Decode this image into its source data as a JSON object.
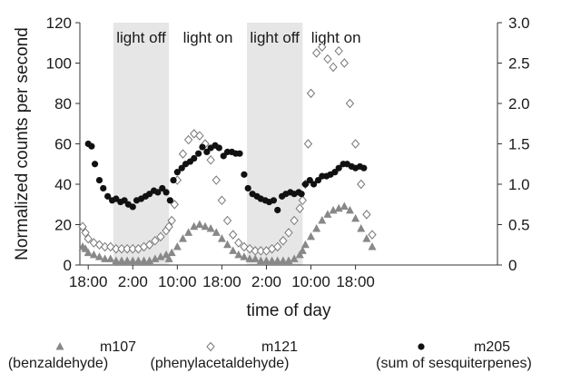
{
  "chart_data": {
    "type": "scatter",
    "title": "",
    "xlabel": "time of day",
    "ylabel": "Normalized counts per second",
    "y2label": "",
    "ylim": [
      0,
      120
    ],
    "y2lim": [
      0,
      3.0
    ],
    "xlim": [
      16.5,
      91.5
    ],
    "x_unit": "hours since start of day 1 (18:00 = 18)",
    "x_ticks": [
      {
        "x": 18,
        "label": "18:00"
      },
      {
        "x": 26,
        "label": "2:00"
      },
      {
        "x": 34,
        "label": "10:00"
      },
      {
        "x": 42,
        "label": "18:00"
      },
      {
        "x": 50,
        "label": "2:00"
      },
      {
        "x": 58,
        "label": "10:00"
      },
      {
        "x": 66,
        "label": "18:00"
      }
    ],
    "y_ticks": [
      0,
      20,
      40,
      60,
      80,
      100,
      120
    ],
    "y2_ticks": [
      "0",
      "0.5",
      "1.0",
      "1.5",
      "2.0",
      "2.5",
      "3.0"
    ],
    "phases": [
      {
        "start": 22.5,
        "end": 32.5,
        "label": "light off",
        "shaded": true
      },
      {
        "start": 32.5,
        "end": 46.5,
        "label": "light on",
        "shaded": false
      },
      {
        "start": 46.5,
        "end": 56.5,
        "label": "light off",
        "shaded": true
      },
      {
        "start": 56.5,
        "end": 68.5,
        "label": "light on",
        "shaded": false
      }
    ],
    "legend_position": "bottom",
    "series": [
      {
        "name": "m107",
        "sublabel": "(benzaldehyde)",
        "marker": "triangle",
        "axis": "left",
        "points": [
          [
            17.0,
            9
          ],
          [
            17.5,
            8
          ],
          [
            18,
            6
          ],
          [
            19,
            5
          ],
          [
            20,
            4
          ],
          [
            21,
            3
          ],
          [
            22,
            3
          ],
          [
            23,
            2
          ],
          [
            24,
            2
          ],
          [
            25,
            2
          ],
          [
            26,
            2
          ],
          [
            27,
            2
          ],
          [
            28,
            2
          ],
          [
            29,
            2
          ],
          [
            30,
            3
          ],
          [
            31,
            4
          ],
          [
            32,
            5
          ],
          [
            32.5,
            3
          ],
          [
            33,
            6
          ],
          [
            34,
            9
          ],
          [
            35,
            13
          ],
          [
            36,
            16
          ],
          [
            37,
            19
          ],
          [
            38,
            20
          ],
          [
            39,
            19
          ],
          [
            40,
            18
          ],
          [
            41,
            16
          ],
          [
            42,
            13
          ],
          [
            43,
            10
          ],
          [
            44,
            7
          ],
          [
            45,
            5
          ],
          [
            46,
            4
          ],
          [
            47,
            3
          ],
          [
            48,
            3
          ],
          [
            49,
            2
          ],
          [
            50,
            2
          ],
          [
            51,
            2
          ],
          [
            52,
            2
          ],
          [
            53,
            2
          ],
          [
            54,
            2
          ],
          [
            55,
            3
          ],
          [
            56,
            5
          ],
          [
            56.5,
            7
          ],
          [
            57,
            10
          ],
          [
            58,
            14
          ],
          [
            59,
            18
          ],
          [
            60,
            22
          ],
          [
            61,
            25
          ],
          [
            62,
            27
          ],
          [
            63,
            28
          ],
          [
            64,
            29
          ],
          [
            65,
            27
          ],
          [
            66,
            23
          ],
          [
            67,
            18
          ],
          [
            68,
            13
          ],
          [
            69,
            9
          ]
        ]
      },
      {
        "name": "m121",
        "sublabel": "(phenylacetaldehyde)",
        "marker": "diamond-open",
        "axis": "left",
        "points": [
          [
            17.0,
            19
          ],
          [
            17.5,
            16
          ],
          [
            18,
            13
          ],
          [
            19,
            11
          ],
          [
            20,
            10
          ],
          [
            21,
            9
          ],
          [
            22,
            9
          ],
          [
            23,
            8
          ],
          [
            24,
            8
          ],
          [
            25,
            8
          ],
          [
            26,
            8
          ],
          [
            27,
            8
          ],
          [
            28,
            9
          ],
          [
            29,
            10
          ],
          [
            30,
            12
          ],
          [
            31,
            14
          ],
          [
            32,
            17
          ],
          [
            32.5,
            19
          ],
          [
            33,
            22
          ],
          [
            33.5,
            30
          ],
          [
            34,
            42
          ],
          [
            35,
            55
          ],
          [
            36,
            62
          ],
          [
            37,
            65
          ],
          [
            38,
            64
          ],
          [
            39,
            60
          ],
          [
            40,
            52
          ],
          [
            41,
            42
          ],
          [
            42,
            32
          ],
          [
            43,
            22
          ],
          [
            44,
            15
          ],
          [
            45,
            11
          ],
          [
            46,
            9
          ],
          [
            47,
            8
          ],
          [
            48,
            7
          ],
          [
            49,
            7
          ],
          [
            50,
            7
          ],
          [
            51,
            8
          ],
          [
            52,
            9
          ],
          [
            53,
            12
          ],
          [
            54,
            16
          ],
          [
            55,
            22
          ],
          [
            56,
            28
          ],
          [
            56.5,
            32
          ],
          [
            57,
            40
          ],
          [
            57.5,
            60
          ],
          [
            58,
            85
          ],
          [
            59,
            105
          ],
          [
            60,
            108
          ],
          [
            61,
            102
          ],
          [
            62,
            98
          ],
          [
            63,
            106
          ],
          [
            64,
            100
          ],
          [
            65,
            80
          ],
          [
            66,
            60
          ],
          [
            67,
            40
          ],
          [
            68,
            25
          ],
          [
            69,
            15
          ]
        ]
      },
      {
        "name": "m205",
        "sublabel": "(sum of sesquiterpenes)",
        "marker": "circle-filled",
        "axis": "right",
        "points": [
          [
            18.0,
            1.5
          ],
          [
            18.6,
            1.47
          ],
          [
            19.2,
            1.25
          ],
          [
            20.0,
            1.05
          ],
          [
            20.7,
            0.95
          ],
          [
            21.5,
            0.85
          ],
          [
            22.3,
            0.8
          ],
          [
            23.0,
            0.82
          ],
          [
            23.8,
            0.78
          ],
          [
            24.5,
            0.8
          ],
          [
            25.2,
            0.75
          ],
          [
            26.0,
            0.72
          ],
          [
            26.7,
            0.8
          ],
          [
            27.5,
            0.82
          ],
          [
            28.3,
            0.85
          ],
          [
            29.0,
            0.88
          ],
          [
            29.8,
            0.92
          ],
          [
            30.5,
            0.9
          ],
          [
            31.3,
            0.95
          ],
          [
            32.0,
            0.9
          ],
          [
            32.7,
            0.8
          ],
          [
            33.3,
            1.05
          ],
          [
            34.0,
            1.15
          ],
          [
            34.8,
            1.2
          ],
          [
            35.5,
            1.25
          ],
          [
            36.3,
            1.28
          ],
          [
            37.0,
            1.32
          ],
          [
            37.8,
            1.38
          ],
          [
            38.5,
            1.46
          ],
          [
            39.3,
            1.4
          ],
          [
            40.0,
            1.45
          ],
          [
            40.8,
            1.48
          ],
          [
            41.5,
            1.45
          ],
          [
            42.3,
            1.35
          ],
          [
            43.0,
            1.4
          ],
          [
            43.8,
            1.4
          ],
          [
            44.5,
            1.38
          ],
          [
            45.2,
            1.38
          ],
          [
            46.0,
            1.12
          ],
          [
            46.7,
            0.95
          ],
          [
            47.5,
            0.88
          ],
          [
            48.3,
            0.85
          ],
          [
            49.0,
            0.82
          ],
          [
            49.8,
            0.8
          ],
          [
            50.5,
            0.78
          ],
          [
            51.3,
            0.8
          ],
          [
            52.0,
            0.68
          ],
          [
            52.8,
            0.85
          ],
          [
            53.5,
            0.88
          ],
          [
            54.3,
            0.9
          ],
          [
            55.0,
            0.88
          ],
          [
            55.8,
            0.9
          ],
          [
            56.3,
            0.88
          ],
          [
            57.0,
            1.0
          ],
          [
            57.8,
            1.05
          ],
          [
            58.5,
            1.0
          ],
          [
            59.3,
            1.05
          ],
          [
            60.0,
            1.1
          ],
          [
            60.8,
            1.1
          ],
          [
            61.5,
            1.12
          ],
          [
            62.3,
            1.15
          ],
          [
            63.0,
            1.2
          ],
          [
            63.8,
            1.25
          ],
          [
            64.5,
            1.25
          ],
          [
            65.3,
            1.22
          ],
          [
            66.0,
            1.2
          ],
          [
            66.8,
            1.22
          ],
          [
            67.5,
            1.2
          ]
        ]
      }
    ]
  }
}
